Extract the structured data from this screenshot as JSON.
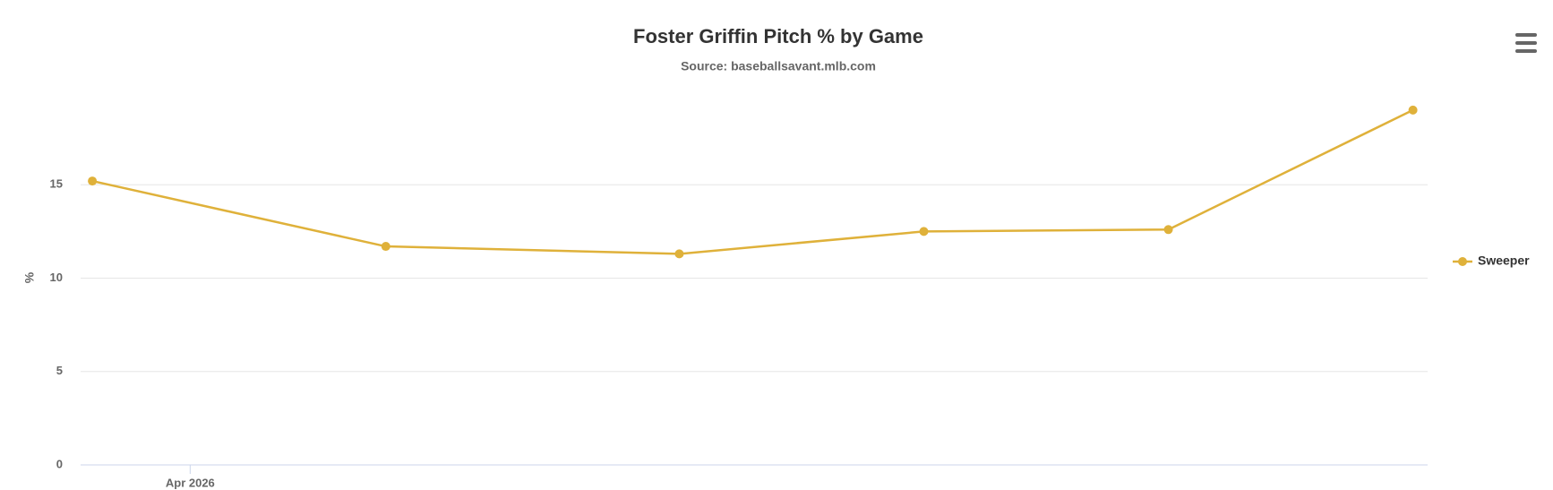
{
  "chart_data": {
    "type": "line",
    "title": "Foster Griffin Pitch % by Game",
    "subtitle": "Source: baseballsavant.mlb.com",
    "y_label": "%",
    "x": [
      0,
      6,
      12,
      17,
      22,
      27
    ],
    "xlim": [
      -0.24,
      27.3
    ],
    "xticks": [
      {
        "value": 2,
        "label": "Apr 2026"
      }
    ],
    "series": [
      {
        "name": "Sweeper",
        "color": "#dfb13a",
        "values": [
          15.2,
          11.7,
          11.3,
          12.5,
          12.6,
          19.0
        ]
      }
    ],
    "ylim": [
      0,
      20
    ],
    "yticks": [
      0,
      5,
      10,
      15
    ],
    "grid": true,
    "legend": "right"
  }
}
